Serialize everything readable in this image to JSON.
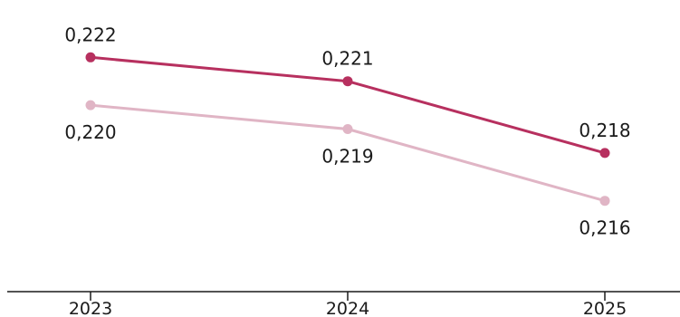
{
  "chart_data": {
    "type": "line",
    "categories": [
      "2023",
      "2024",
      "2025"
    ],
    "tick_labels": [
      "2023",
      "2024",
      "2025"
    ],
    "series": [
      {
        "values": [
          0.222,
          0.221,
          0.218
        ],
        "labels": [
          "0,222",
          "0,221",
          "0,218"
        ],
        "color": "#b7305f",
        "label_position": "above"
      },
      {
        "values": [
          0.22,
          0.219,
          0.216
        ],
        "labels": [
          "0,220",
          "0,219",
          "0,216"
        ],
        "color": "#e0b5c5",
        "label_position": "below"
      }
    ],
    "ylim": [
      0.2122,
      0.2244
    ],
    "grid": false,
    "legend": "none",
    "axis_color": "#1a1a1a"
  }
}
